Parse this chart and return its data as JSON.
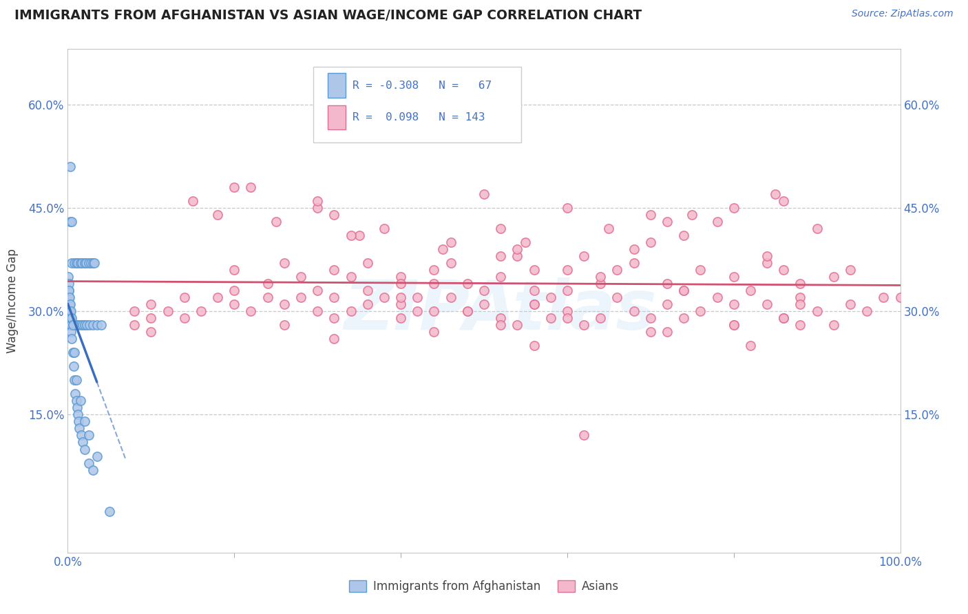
{
  "title": "IMMIGRANTS FROM AFGHANISTAN VS ASIAN WAGE/INCOME GAP CORRELATION CHART",
  "source": "Source: ZipAtlas.com",
  "ylabel": "Wage/Income Gap",
  "xlim": [
    0,
    100
  ],
  "ylim": [
    -5,
    68
  ],
  "yticks": [
    15,
    30,
    45,
    60
  ],
  "ytick_labels": [
    "15.0%",
    "30.0%",
    "45.0%",
    "60.0%"
  ],
  "xtick_labels": [
    "0.0%",
    "100.0%"
  ],
  "color_blue_fill": "#aec6e8",
  "color_blue_edge": "#5b9bd5",
  "color_pink_fill": "#f4b8cc",
  "color_pink_edge": "#e07090",
  "color_blue_line": "#3a6ebd",
  "color_pink_line": "#d05070",
  "color_text_blue": "#4472c4",
  "color_grid": "#c8c8c8",
  "background": "#ffffff",
  "watermark_text": "ZIPAtlas",
  "afg_x": [
    0.3,
    0.3,
    0.5,
    0.5,
    0.8,
    1.0,
    1.2,
    1.5,
    1.7,
    2.0,
    2.2,
    2.5,
    2.8,
    3.0,
    3.2,
    0.2,
    0.2,
    0.4,
    0.6,
    0.8,
    1.0,
    1.2,
    1.5,
    1.8,
    2.0,
    2.3,
    2.6,
    3.0,
    3.5,
    4.0,
    0.1,
    0.15,
    0.2,
    0.25,
    0.3,
    0.35,
    0.4,
    0.5,
    0.6,
    0.7,
    0.8,
    0.9,
    1.0,
    1.1,
    1.2,
    1.3,
    1.4,
    1.6,
    1.8,
    2.0,
    2.5,
    3.0,
    0.05,
    0.1,
    0.15,
    0.2,
    0.3,
    0.4,
    0.5,
    0.6,
    0.8,
    1.0,
    1.5,
    2.0,
    2.5,
    3.5,
    5.0
  ],
  "afg_y": [
    51,
    43,
    43,
    37,
    37,
    37,
    37,
    37,
    37,
    37,
    37,
    37,
    37,
    37,
    37,
    28,
    28,
    28,
    28,
    28,
    28,
    28,
    28,
    28,
    28,
    28,
    28,
    28,
    28,
    28,
    33,
    32,
    31,
    30,
    29,
    28,
    27,
    26,
    24,
    22,
    20,
    18,
    17,
    16,
    15,
    14,
    13,
    12,
    11,
    10,
    8,
    7,
    35,
    34,
    33,
    32,
    31,
    30,
    29,
    28,
    24,
    20,
    17,
    14,
    12,
    9,
    1
  ],
  "asian_x": [
    8,
    8,
    10,
    10,
    12,
    14,
    14,
    16,
    18,
    20,
    20,
    22,
    24,
    26,
    26,
    28,
    30,
    30,
    32,
    32,
    34,
    34,
    36,
    36,
    38,
    40,
    40,
    42,
    44,
    44,
    46,
    48,
    50,
    50,
    52,
    54,
    56,
    56,
    58,
    60,
    62,
    64,
    66,
    68,
    70,
    72,
    74,
    76,
    78,
    80,
    82,
    84,
    86,
    88,
    90,
    92,
    94,
    96,
    98,
    100,
    15,
    25,
    35,
    45,
    55,
    65,
    75,
    85,
    18,
    22,
    30,
    38,
    46,
    54,
    62,
    70,
    78,
    86,
    94,
    20,
    28,
    36,
    44,
    52,
    60,
    68,
    76,
    84,
    92,
    24,
    32,
    40,
    48,
    56,
    64,
    72,
    80,
    88,
    10,
    42,
    58,
    74,
    88,
    26,
    46,
    66,
    86,
    34,
    54,
    74,
    90,
    32,
    52,
    72,
    52,
    68,
    84,
    32,
    44,
    56,
    70,
    82,
    40,
    60,
    80,
    20,
    30,
    50,
    60,
    70,
    80,
    52,
    60,
    72,
    86,
    40,
    56,
    74,
    88,
    48,
    64,
    80,
    62
  ],
  "asian_y": [
    28,
    30,
    27,
    31,
    30,
    29,
    32,
    30,
    32,
    31,
    33,
    30,
    32,
    31,
    28,
    32,
    30,
    33,
    29,
    32,
    30,
    35,
    31,
    33,
    32,
    29,
    31,
    32,
    30,
    34,
    32,
    30,
    33,
    31,
    29,
    28,
    33,
    31,
    32,
    30,
    28,
    34,
    32,
    30,
    29,
    31,
    33,
    30,
    32,
    28,
    33,
    31,
    29,
    32,
    30,
    28,
    31,
    30,
    32,
    32,
    46,
    43,
    41,
    39,
    40,
    42,
    44,
    47,
    44,
    48,
    45,
    42,
    40,
    38,
    38,
    40,
    43,
    46,
    36,
    36,
    35,
    37,
    36,
    35,
    36,
    37,
    36,
    37,
    35,
    34,
    36,
    35,
    34,
    36,
    35,
    34,
    35,
    34,
    29,
    30,
    29,
    29,
    28,
    37,
    37,
    36,
    36,
    41,
    39,
    41,
    42,
    44,
    42,
    43,
    38,
    39,
    38,
    26,
    27,
    25,
    27,
    25,
    34,
    33,
    31,
    48,
    46,
    47,
    45,
    44,
    45,
    28,
    29,
    27,
    29,
    32,
    31,
    33,
    31,
    30,
    29,
    28,
    12
  ]
}
